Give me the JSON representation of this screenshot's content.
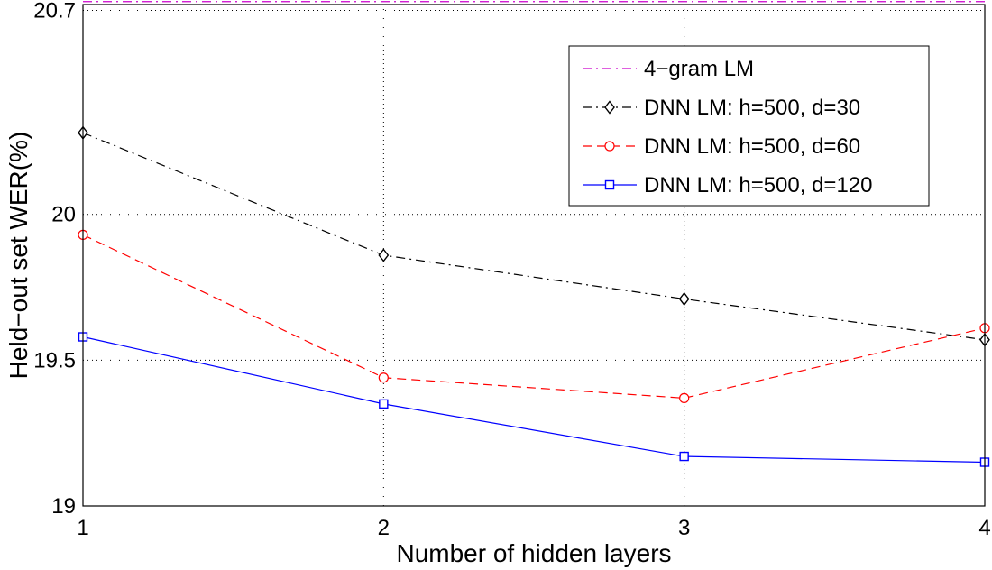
{
  "chart_data": {
    "type": "line",
    "xlabel": "Number of hidden layers",
    "ylabel": "Held−out set WER(%)",
    "x": [
      1,
      2,
      3,
      4
    ],
    "xlim": [
      1,
      4
    ],
    "ylim": [
      19,
      20.72
    ],
    "xticks": [
      "1",
      "2",
      "3",
      "4"
    ],
    "yticks": [
      {
        "value": 19,
        "label": "19"
      },
      {
        "value": 19.5,
        "label": "19.5"
      },
      {
        "value": 20,
        "label": "20"
      },
      {
        "value": 20.7,
        "label": "20.7"
      }
    ],
    "grid": true,
    "legend_position": "top-right",
    "series": [
      {
        "name": "4−gram LM",
        "style": "dashdot",
        "marker": "none",
        "color": "#cc00cc",
        "constant": 20.73
      },
      {
        "name": "DNN LM: h=500, d=30",
        "style": "dashdot",
        "marker": "diamond",
        "color": "#000000",
        "values": [
          20.28,
          19.86,
          19.71,
          19.57
        ]
      },
      {
        "name": "DNN LM: h=500, d=60",
        "style": "dashed",
        "marker": "circle",
        "color": "#ff0000",
        "values": [
          19.93,
          19.44,
          19.37,
          19.61
        ]
      },
      {
        "name": "DNN LM: h=500, d=120",
        "style": "solid",
        "marker": "square",
        "color": "#0000ff",
        "values": [
          19.58,
          19.35,
          19.17,
          19.15
        ]
      }
    ]
  }
}
